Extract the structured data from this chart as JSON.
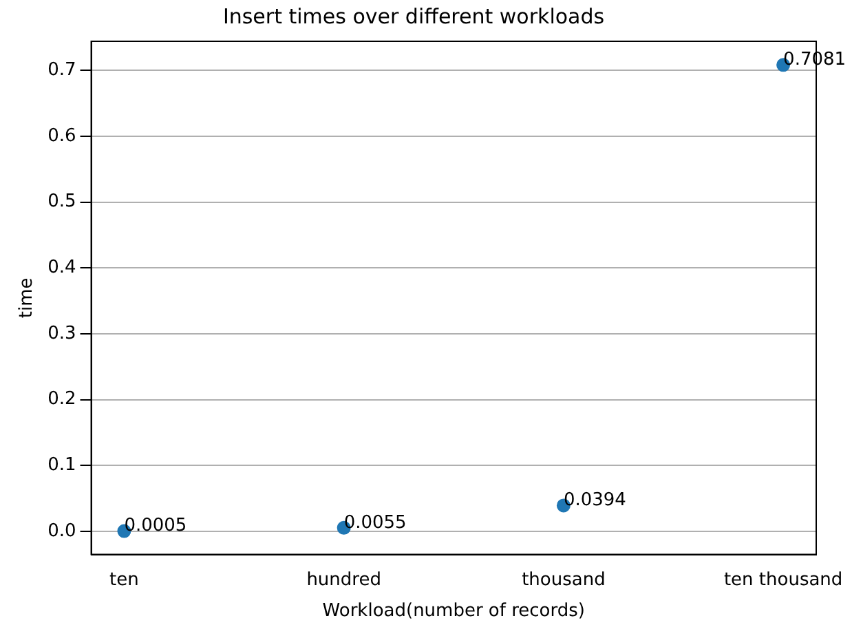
{
  "chart_data": {
    "type": "scatter",
    "title": "Insert times over different workloads",
    "xlabel": "Workload(number of records)",
    "ylabel": "time",
    "categories": [
      "ten",
      "hundred",
      "thousand",
      "ten thousand"
    ],
    "series": [
      {
        "color": "#1f77b4",
        "values": [
          0.0005,
          0.0055,
          0.0394,
          0.7081
        ]
      }
    ],
    "data_labels": true,
    "marker": "circle",
    "grid": "y",
    "legend": false,
    "ylim": [
      -0.035,
      0.744
    ],
    "yticks": [
      {
        "value": 0,
        "label": "0.0"
      },
      {
        "value": 0.1,
        "label": "0.1"
      },
      {
        "value": 0.2,
        "label": "0.2"
      },
      {
        "value": 0.3,
        "label": "0.3"
      },
      {
        "value": 0.4,
        "label": "0.4"
      },
      {
        "value": 0.5,
        "label": "0.5"
      },
      {
        "value": 0.6,
        "label": "0.6"
      },
      {
        "value": 0.7,
        "label": "0.7"
      }
    ]
  }
}
